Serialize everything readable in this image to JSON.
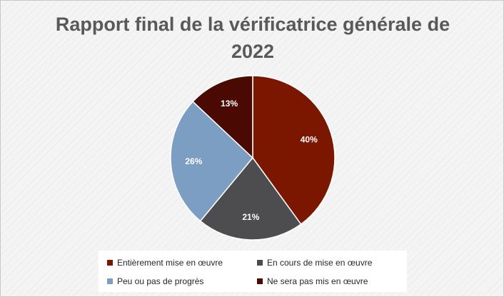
{
  "chart_data": {
    "type": "pie",
    "title": "Rapport final de la vérificatrice générale de 2022",
    "title_lines": [
      "Rapport final de la vérificatrice générale de",
      "2022"
    ],
    "slices": [
      {
        "label": "Entièrement mise en œuvre",
        "value": 40,
        "value_label": "40%",
        "color": "#7b1600"
      },
      {
        "label": "En cours de mise en œuvre",
        "value": 21,
        "value_label": "21%",
        "color": "#4d4d50"
      },
      {
        "label": "Peu ou pas de progrès",
        "value": 26,
        "value_label": "26%",
        "color": "#7d9ec3"
      },
      {
        "label": "Ne sera pas mis en œuvre",
        "value": 13,
        "value_label": "13%",
        "color": "#4a0a03"
      }
    ],
    "legend": "bottom"
  }
}
